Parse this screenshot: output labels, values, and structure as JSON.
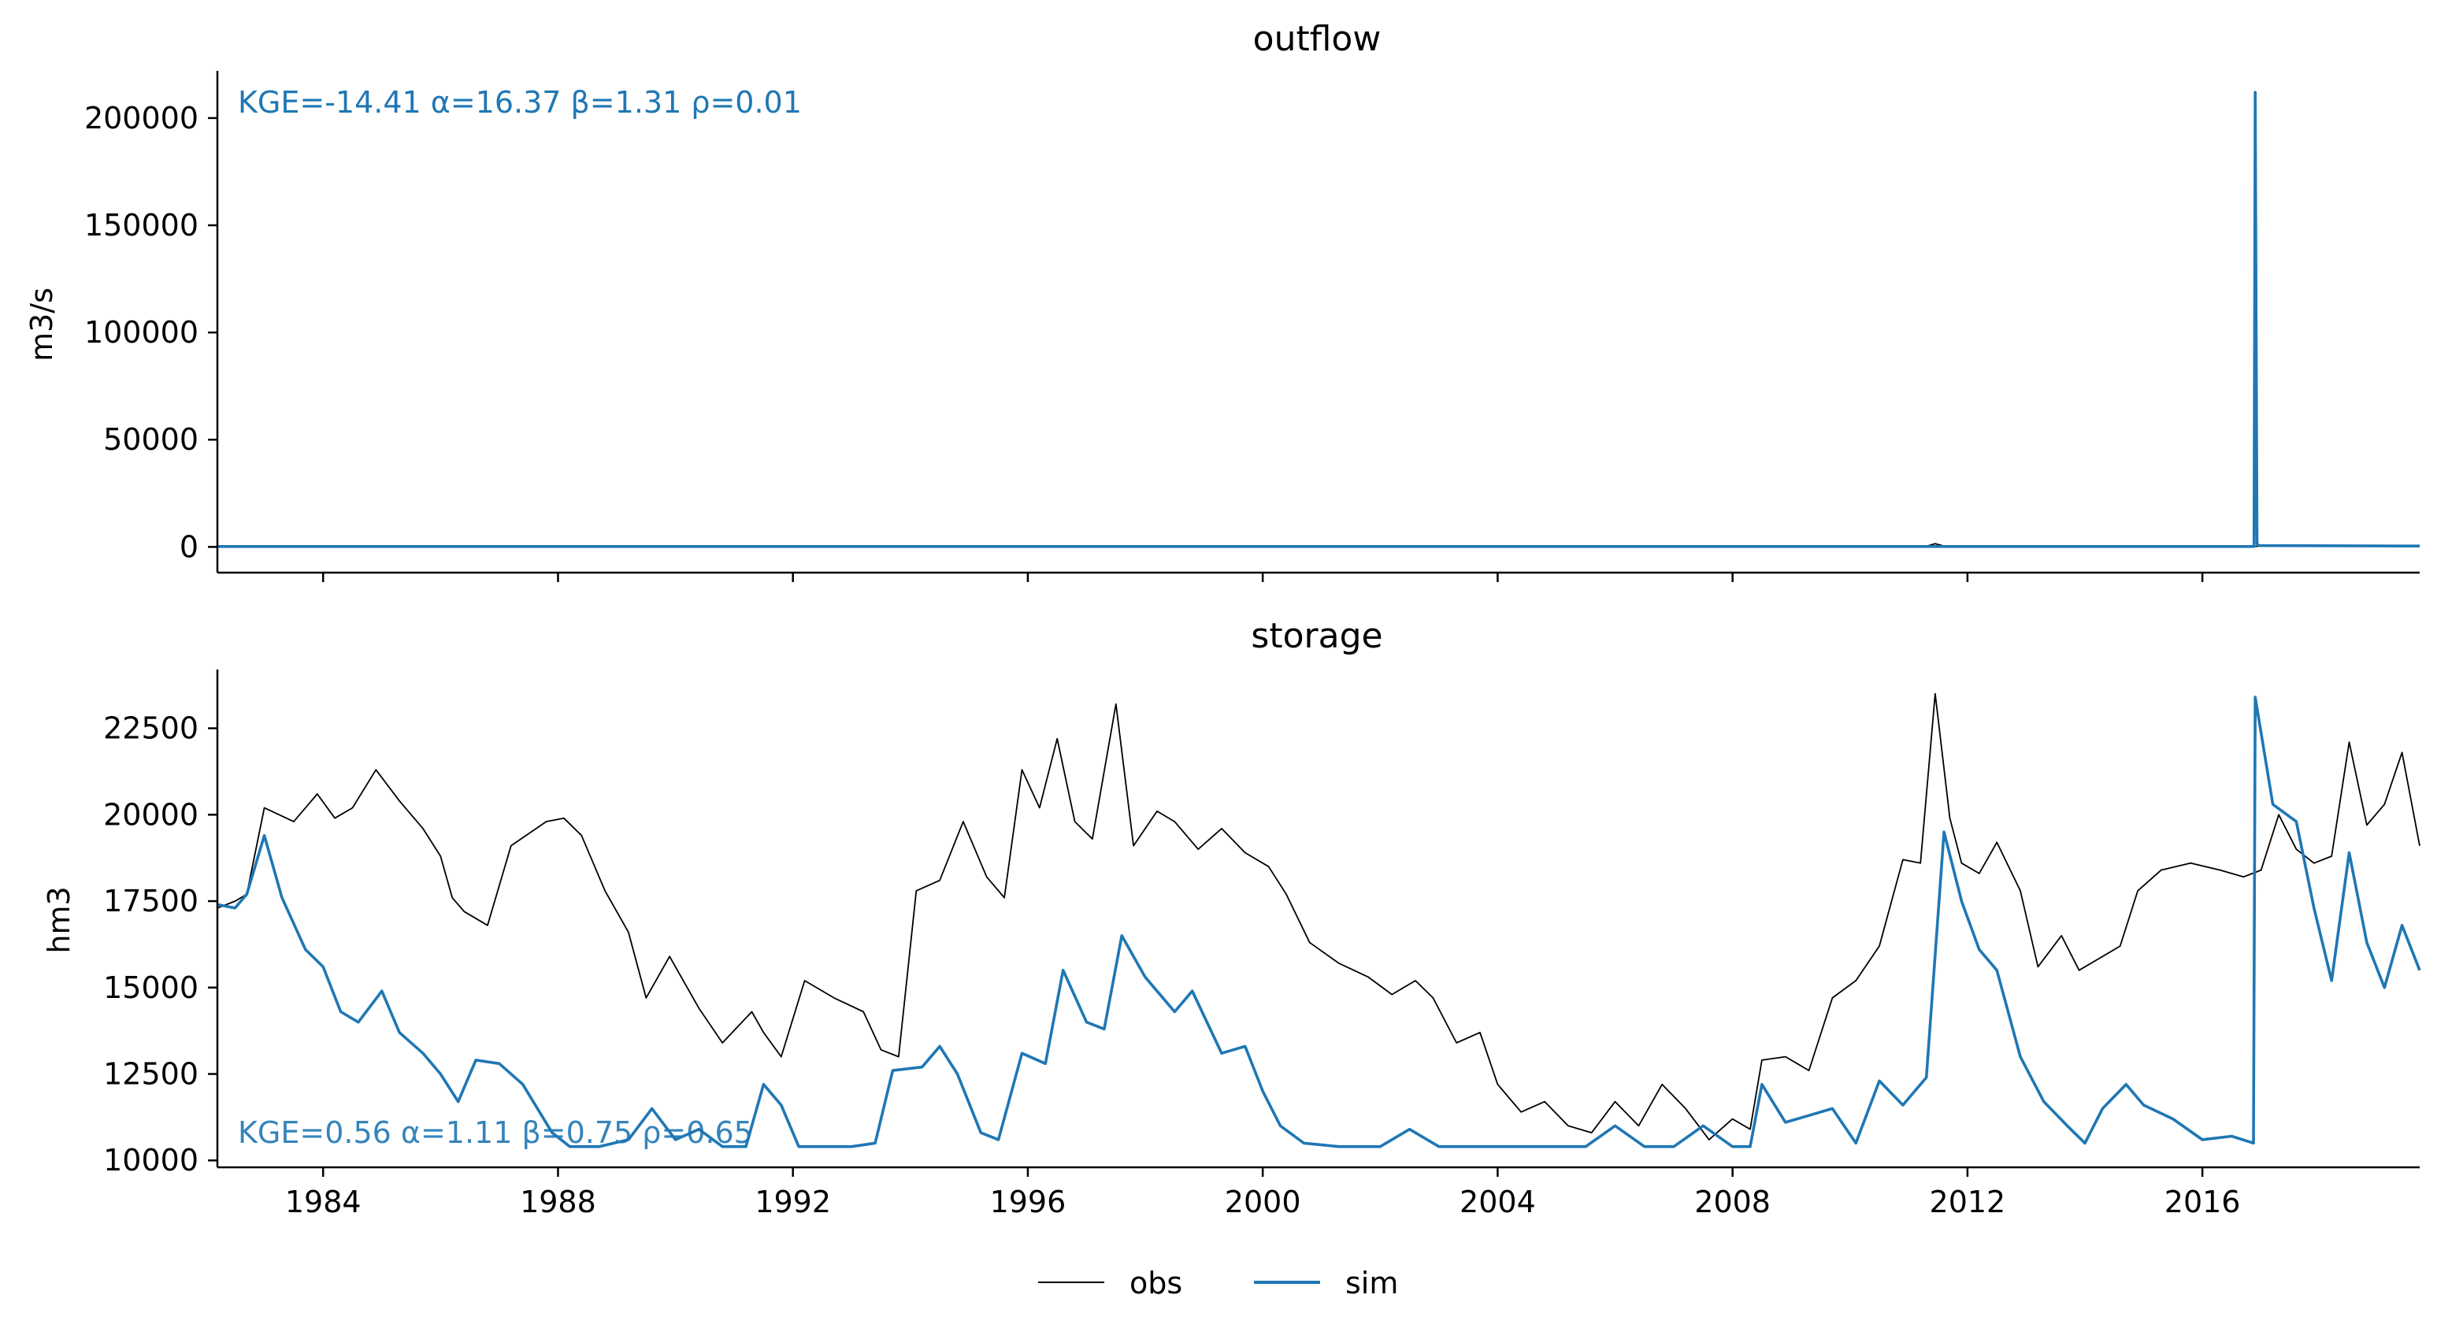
{
  "legend": {
    "placement": "bottom-center",
    "entries": [
      {
        "label": "obs",
        "color": "#000000"
      },
      {
        "label": "sim",
        "color": "#1f77b4"
      }
    ]
  },
  "colors": {
    "obs": "#000000",
    "sim": "#1f77b4",
    "axis": "#000000"
  },
  "chart_data": [
    {
      "type": "line",
      "title": "outflow",
      "ylabel": "m3/s",
      "xlabel": "",
      "xlim": [
        1982.2,
        2019.7
      ],
      "ylim": [
        -12000,
        222000
      ],
      "yticks": [
        0,
        50000,
        100000,
        150000,
        200000
      ],
      "ytick_labels": [
        "0",
        "50000",
        "100000",
        "150000",
        "200000"
      ],
      "xticks": [
        1984,
        1988,
        1992,
        1996,
        2000,
        2004,
        2008,
        2012,
        2016
      ],
      "xtick_labels": [],
      "annotation": "KGE=-14.41  α=16.37  β=1.31  ρ=0.01",
      "grid": false,
      "series": [
        {
          "name": "obs",
          "x": [
            1982.2,
            1990,
            2000,
            2008,
            2011.3,
            2011.45,
            2011.6,
            2016.8,
            2019.7
          ],
          "y": [
            300,
            250,
            300,
            200,
            300,
            1500,
            400,
            300,
            300
          ]
        },
        {
          "name": "sim",
          "x": [
            1982.2,
            1990,
            2000,
            2010,
            2016.88,
            2016.9,
            2016.93,
            2016.96,
            2019.7
          ],
          "y": [
            200,
            200,
            200,
            200,
            200,
            212000,
            1500,
            600,
            400
          ]
        }
      ]
    },
    {
      "type": "line",
      "title": "storage",
      "ylabel": "hm3",
      "xlabel": "",
      "xlim": [
        1982.2,
        2019.7
      ],
      "ylim": [
        9800,
        24200
      ],
      "yticks": [
        10000,
        12500,
        15000,
        17500,
        20000,
        22500
      ],
      "ytick_labels": [
        "10000",
        "12500",
        "15000",
        "17500",
        "20000",
        "22500"
      ],
      "xticks": [
        1984,
        1988,
        1992,
        1996,
        2000,
        2004,
        2008,
        2012,
        2016
      ],
      "xtick_labels": [
        "1984",
        "1988",
        "1992",
        "1996",
        "2000",
        "2004",
        "2008",
        "2012",
        "2016"
      ],
      "annotation": "KGE=0.56  α=1.11  β=0.75  ρ=0.65",
      "grid": false,
      "series": [
        {
          "name": "obs",
          "x": [
            1982.2,
            1982.5,
            1982.7,
            1983.0,
            1983.5,
            1983.9,
            1984.2,
            1984.5,
            1984.9,
            1985.3,
            1985.7,
            1986.0,
            1986.2,
            1986.4,
            1986.8,
            1987.2,
            1987.8,
            1988.1,
            1988.4,
            1988.8,
            1989.2,
            1989.5,
            1989.9,
            1990.4,
            1990.8,
            1991.3,
            1991.5,
            1991.8,
            1992.2,
            1992.7,
            1993.2,
            1993.5,
            1993.8,
            1994.1,
            1994.5,
            1994.9,
            1995.3,
            1995.6,
            1995.9,
            1996.2,
            1996.5,
            1996.8,
            1997.1,
            1997.5,
            1997.8,
            1998.2,
            1998.5,
            1998.9,
            1999.3,
            1999.7,
            2000.1,
            2000.4,
            2000.8,
            2001.3,
            2001.8,
            2002.2,
            2002.6,
            2002.9,
            2003.3,
            2003.7,
            2004.0,
            2004.4,
            2004.8,
            2005.2,
            2005.6,
            2006.0,
            2006.4,
            2006.8,
            2007.2,
            2007.6,
            2008.0,
            2008.3,
            2008.5,
            2008.9,
            2009.3,
            2009.7,
            2010.1,
            2010.5,
            2010.9,
            2011.2,
            2011.45,
            2011.7,
            2011.9,
            2012.2,
            2012.5,
            2012.9,
            2013.2,
            2013.6,
            2013.9,
            2014.3,
            2014.6,
            2014.9,
            2015.3,
            2015.8,
            2016.3,
            2016.7,
            2017.0,
            2017.3,
            2017.6,
            2017.9,
            2018.2,
            2018.5,
            2018.8,
            2019.1,
            2019.4,
            2019.7
          ],
          "y": [
            17300,
            17500,
            17700,
            20200,
            19800,
            20600,
            19900,
            20200,
            21300,
            20400,
            19600,
            18800,
            17600,
            17200,
            16800,
            19100,
            19800,
            19900,
            19400,
            17800,
            16600,
            14700,
            15900,
            14400,
            13400,
            14300,
            13700,
            13000,
            15200,
            14700,
            14300,
            13200,
            13000,
            17800,
            18100,
            19800,
            18200,
            17600,
            21300,
            20200,
            22200,
            19800,
            19300,
            23200,
            19100,
            20100,
            19800,
            19000,
            19600,
            18900,
            18500,
            17700,
            16300,
            15700,
            15300,
            14800,
            15200,
            14700,
            13400,
            13700,
            12200,
            11400,
            11700,
            11000,
            10800,
            11700,
            11000,
            12200,
            11500,
            10600,
            11200,
            10900,
            12900,
            13000,
            12600,
            14700,
            15200,
            16200,
            18700,
            18600,
            23500,
            19900,
            18600,
            18300,
            19200,
            17800,
            15600,
            16500,
            15500,
            15900,
            16200,
            17800,
            18400,
            18600,
            18400,
            18200,
            18400,
            20000,
            19000,
            18600,
            18800,
            22100,
            19700,
            20300,
            21800,
            19100
          ]
        },
        {
          "name": "sim",
          "x": [
            1982.2,
            1982.5,
            1982.7,
            1983.0,
            1983.3,
            1983.7,
            1984.0,
            1984.3,
            1984.6,
            1985.0,
            1985.3,
            1985.7,
            1986.0,
            1986.3,
            1986.6,
            1987.0,
            1987.4,
            1987.9,
            1988.2,
            1988.7,
            1989.2,
            1989.6,
            1990.0,
            1990.4,
            1990.8,
            1991.2,
            1991.5,
            1991.8,
            1992.1,
            1992.6,
            1993.0,
            1993.4,
            1993.7,
            1994.2,
            1994.5,
            1994.8,
            1995.2,
            1995.5,
            1995.9,
            1996.3,
            1996.6,
            1997.0,
            1997.3,
            1997.6,
            1998.0,
            1998.5,
            1998.8,
            1999.3,
            1999.7,
            2000.0,
            2000.3,
            2000.7,
            2001.3,
            2002.0,
            2002.5,
            2003.0,
            2004.0,
            2004.7,
            2005.5,
            2006.0,
            2006.5,
            2007.0,
            2007.5,
            2008.0,
            2008.3,
            2008.5,
            2008.9,
            2009.3,
            2009.7,
            2010.1,
            2010.5,
            2010.9,
            2011.3,
            2011.6,
            2011.9,
            2012.2,
            2012.5,
            2012.9,
            2013.3,
            2013.7,
            2014.0,
            2014.3,
            2014.7,
            2015.0,
            2015.5,
            2016.0,
            2016.5,
            2016.87,
            2016.9,
            2017.2,
            2017.6,
            2017.9,
            2018.2,
            2018.5,
            2018.8,
            2019.1,
            2019.4,
            2019.7
          ],
          "y": [
            17400,
            17300,
            17700,
            19400,
            17600,
            16100,
            15600,
            14300,
            14000,
            14900,
            13700,
            13100,
            12500,
            11700,
            12900,
            12800,
            12200,
            10800,
            10400,
            10400,
            10600,
            11500,
            10600,
            10900,
            10400,
            10400,
            12200,
            11600,
            10400,
            10400,
            10400,
            10500,
            12600,
            12700,
            13300,
            12500,
            10800,
            10600,
            13100,
            12800,
            15500,
            14000,
            13800,
            16500,
            15300,
            14300,
            14900,
            13100,
            13300,
            12000,
            11000,
            10500,
            10400,
            10400,
            10900,
            10400,
            10400,
            10400,
            10400,
            11000,
            10400,
            10400,
            11000,
            10400,
            10400,
            12200,
            11100,
            11300,
            11500,
            10500,
            12300,
            11600,
            12400,
            19500,
            17500,
            16100,
            15500,
            13000,
            11700,
            11000,
            10500,
            11500,
            12200,
            11600,
            11200,
            10600,
            10700,
            10500,
            23400,
            20300,
            19800,
            17300,
            15200,
            18900,
            16300,
            15000,
            16800,
            15500
          ]
        }
      ]
    }
  ]
}
